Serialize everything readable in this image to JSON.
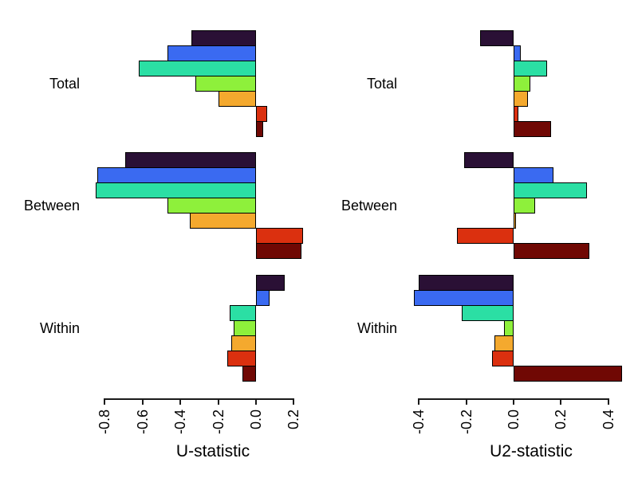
{
  "chart_data": [
    {
      "type": "bar",
      "orientation": "horizontal",
      "title": "",
      "xlabel": "U-statistic",
      "ylabel": "",
      "legend": "none",
      "grid": false,
      "xlim": [
        -0.87,
        0.27
      ],
      "x_tick_labels": [
        "-0.8",
        "-0.6",
        "-0.4",
        "-0.2",
        "0.0",
        "0.2"
      ],
      "x_tick_values": [
        -0.8,
        -0.6,
        -0.4,
        -0.2,
        0.0,
        0.2
      ],
      "bar_colors": [
        "#2A1035",
        "#3A6AF1",
        "#2BDFA4",
        "#8EF03B",
        "#F4A92E",
        "#DB300F",
        "#700804"
      ],
      "groups": [
        {
          "label": "Total",
          "values": [
            -0.34,
            -0.47,
            -0.62,
            -0.32,
            -0.2,
            0.06,
            0.04
          ]
        },
        {
          "label": "Between",
          "values": [
            -0.69,
            -0.84,
            -0.85,
            -0.47,
            -0.35,
            0.25,
            0.24
          ]
        },
        {
          "label": "Within",
          "values": [
            0.15,
            0.07,
            -0.14,
            -0.12,
            -0.13,
            -0.15,
            -0.07
          ]
        }
      ]
    },
    {
      "type": "bar",
      "orientation": "horizontal",
      "title": "",
      "xlabel": "U2-statistic",
      "ylabel": "",
      "legend": "none",
      "grid": false,
      "xlim": [
        -0.47,
        0.49
      ],
      "x_tick_labels": [
        "-0.4",
        "-0.2",
        "0.0",
        "0.2",
        "0.4"
      ],
      "x_tick_values": [
        -0.4,
        -0.2,
        0.0,
        0.2,
        0.4
      ],
      "bar_colors": [
        "#2A1035",
        "#3A6AF1",
        "#2BDFA4",
        "#8EF03B",
        "#F4A92E",
        "#DB300F",
        "#700804"
      ],
      "groups": [
        {
          "label": "Total",
          "values": [
            -0.14,
            0.03,
            0.14,
            0.07,
            0.06,
            0.02,
            0.16
          ]
        },
        {
          "label": "Between",
          "values": [
            -0.21,
            0.17,
            0.31,
            0.09,
            0.01,
            -0.24,
            0.32
          ]
        },
        {
          "label": "Within",
          "values": [
            -0.4,
            -0.42,
            -0.22,
            -0.04,
            -0.08,
            -0.09,
            0.46
          ]
        }
      ]
    }
  ]
}
